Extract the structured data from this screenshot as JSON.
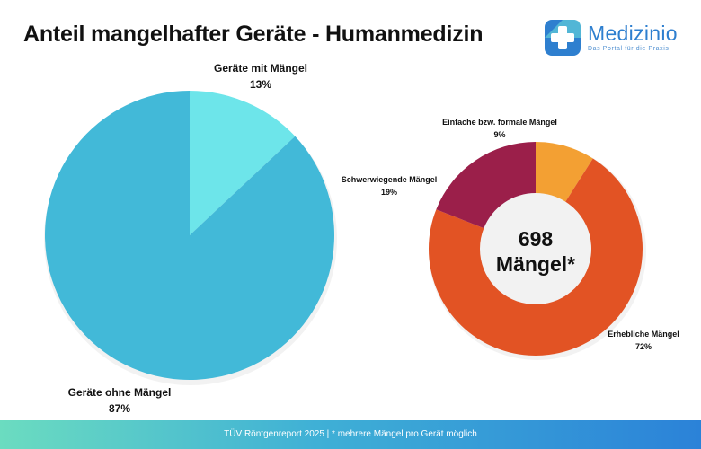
{
  "title": "Anteil mangelhafter Geräte - Humanmedizin",
  "brand": {
    "name": "Medizinio",
    "tagline": "Das Portal für die Praxis",
    "color_primary": "#2e7fcf",
    "color_accent": "#5fc8d8"
  },
  "chart_data": [
    {
      "type": "pie",
      "categories": [
        "Geräte mit Mängel",
        "Geräte ohne Mängel"
      ],
      "values": [
        13,
        87
      ],
      "value_labels": [
        "13%",
        "87%"
      ],
      "colors": [
        "#6de5ea",
        "#42b9d8"
      ],
      "unit": "%"
    },
    {
      "type": "pie",
      "subtype": "donut",
      "categories": [
        "Einfache bzw. formale Mängel",
        "Erhebliche Mängel",
        "Schwerwiegende Mängel"
      ],
      "values": [
        9,
        72,
        19
      ],
      "value_labels": [
        "9%",
        "72%",
        "19%"
      ],
      "colors": [
        "#f3a033",
        "#e25324",
        "#9b1f4a"
      ],
      "unit": "%",
      "center_label": [
        "698",
        "Mängel*"
      ]
    }
  ],
  "footer": "TÜV Röntgenreport 2025 | * mehrere Mängel pro Gerät möglich"
}
